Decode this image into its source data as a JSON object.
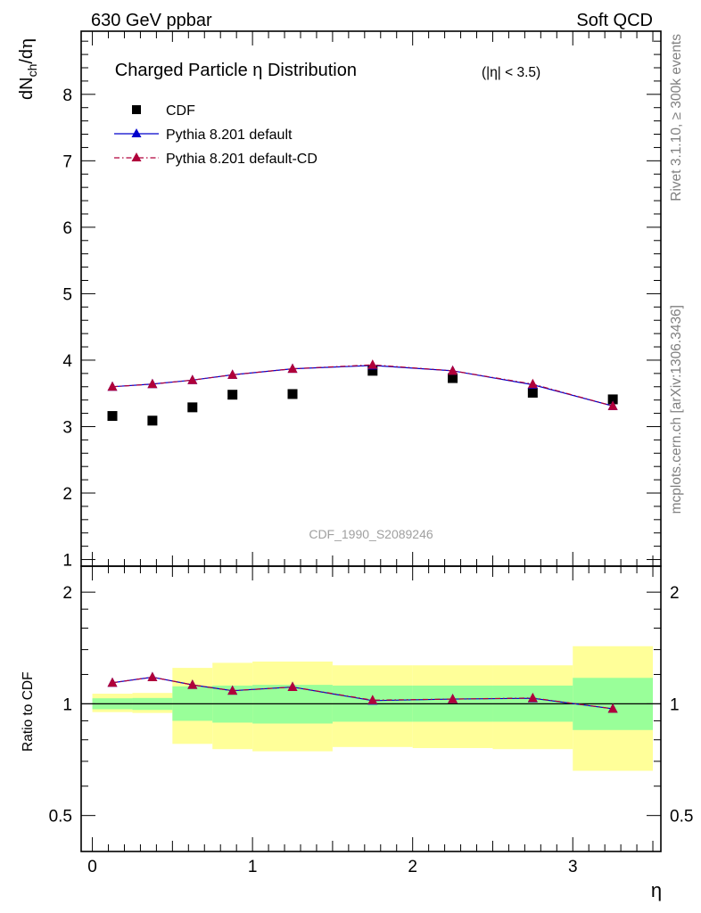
{
  "header": {
    "left": "630 GeV ppbar",
    "right": "Soft QCD"
  },
  "side_labels": {
    "upper": "Rivet 3.1.10, ≥ 300k events",
    "lower": "mcplots.cern.ch [arXiv:1306.3436]"
  },
  "watermark": "CDF_1990_S2089246",
  "chart_data": [
    {
      "type": "scatter",
      "title": "Charged Particle η Distribution",
      "title_suffix": "(|η| < 3.5)",
      "xlabel": "η",
      "ylabel": "dN_ch/dη",
      "xlim": [
        -0.07,
        3.55
      ],
      "ylim": [
        0.9,
        8.95
      ],
      "x_ticks": [
        0,
        1,
        2,
        3
      ],
      "y_ticks": [
        1,
        2,
        3,
        4,
        5,
        6,
        7,
        8
      ],
      "legend_position": "top-left",
      "series": [
        {
          "name": "CDF",
          "marker": "square",
          "color": "#000000",
          "x": [
            0.125,
            0.375,
            0.625,
            0.875,
            1.25,
            1.75,
            2.25,
            2.75,
            3.25
          ],
          "y": [
            3.16,
            3.09,
            3.29,
            3.48,
            3.49,
            3.84,
            3.73,
            3.51,
            3.41
          ]
        },
        {
          "name": "Pythia 8.201 default",
          "marker": "triangle",
          "line": "solid",
          "color": "#0000cc",
          "x": [
            0.125,
            0.375,
            0.625,
            0.875,
            1.25,
            1.75,
            2.25,
            2.75,
            3.25
          ],
          "y": [
            3.6,
            3.64,
            3.7,
            3.78,
            3.87,
            3.92,
            3.84,
            3.63,
            3.31
          ]
        },
        {
          "name": "Pythia 8.201 default-CD",
          "marker": "triangle",
          "line": "dash-dot",
          "color": "#b0003a",
          "x": [
            0.125,
            0.375,
            0.625,
            0.875,
            1.25,
            1.75,
            2.25,
            2.75,
            3.25
          ],
          "y": [
            3.6,
            3.64,
            3.7,
            3.78,
            3.87,
            3.93,
            3.84,
            3.64,
            3.31
          ]
        }
      ]
    },
    {
      "type": "line",
      "ylabel": "Ratio to CDF",
      "xlabel": "η",
      "xlim": [
        -0.07,
        3.55
      ],
      "ylim": [
        0.4,
        2.35
      ],
      "log_y": true,
      "x_ticks": [
        0,
        1,
        2,
        3
      ],
      "y_ticks": [
        0.5,
        1,
        2
      ],
      "reference_line": 1,
      "bands": [
        {
          "x0": 0.0,
          "x1": 0.25,
          "inner": [
            0.967,
            1.035
          ],
          "outer": [
            0.95,
            1.065
          ]
        },
        {
          "x0": 0.25,
          "x1": 0.5,
          "inner": [
            0.963,
            1.037
          ],
          "outer": [
            0.945,
            1.07
          ]
        },
        {
          "x0": 0.5,
          "x1": 0.75,
          "inner": [
            0.9,
            1.115
          ],
          "outer": [
            0.78,
            1.25
          ]
        },
        {
          "x0": 0.75,
          "x1": 1.0,
          "inner": [
            0.89,
            1.12
          ],
          "outer": [
            0.755,
            1.29
          ]
        },
        {
          "x0": 1.0,
          "x1": 1.5,
          "inner": [
            0.885,
            1.125
          ],
          "outer": [
            0.745,
            1.3
          ]
        },
        {
          "x0": 1.5,
          "x1": 2.0,
          "inner": [
            0.895,
            1.12
          ],
          "outer": [
            0.765,
            1.27
          ]
        },
        {
          "x0": 2.0,
          "x1": 2.5,
          "inner": [
            0.895,
            1.12
          ],
          "outer": [
            0.76,
            1.27
          ]
        },
        {
          "x0": 2.5,
          "x1": 3.0,
          "inner": [
            0.895,
            1.12
          ],
          "outer": [
            0.755,
            1.27
          ]
        },
        {
          "x0": 3.0,
          "x1": 3.5,
          "inner": [
            0.85,
            1.175
          ],
          "outer": [
            0.66,
            1.43
          ]
        }
      ],
      "inner_band_color": "#99ff99",
      "outer_band_color": "#ffff99",
      "series": [
        {
          "name": "Pythia 8.201 default",
          "color": "#0000cc",
          "x": [
            0.125,
            0.375,
            0.625,
            0.875,
            1.25,
            1.75,
            2.25,
            2.75,
            3.25
          ],
          "y": [
            1.14,
            1.18,
            1.125,
            1.085,
            1.11,
            1.02,
            1.03,
            1.035,
            0.97
          ]
        },
        {
          "name": "Pythia 8.201 default-CD",
          "color": "#b0003a",
          "x": [
            0.125,
            0.375,
            0.625,
            0.875,
            1.25,
            1.75,
            2.25,
            2.75,
            3.25
          ],
          "y": [
            1.14,
            1.18,
            1.125,
            1.085,
            1.11,
            1.023,
            1.03,
            1.037,
            0.97
          ]
        }
      ]
    }
  ]
}
